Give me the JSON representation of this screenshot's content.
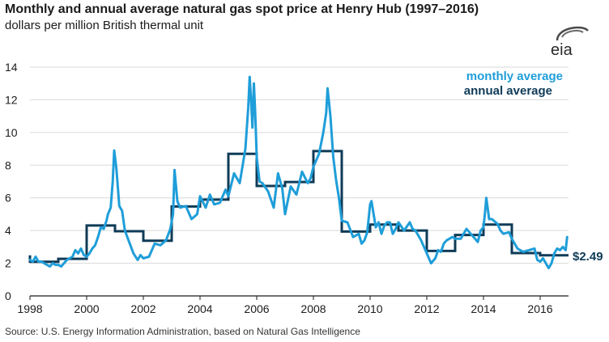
{
  "header": {
    "title": "Monthly and annual average natural gas spot price at Henry Hub (1997–2016)",
    "subtitle": "dollars per million British thermal unit"
  },
  "logo": {
    "text": "eia",
    "icon": "eia-logo"
  },
  "source": "Source:  U.S. Energy Information Administration, based on Natural Gas Intelligence",
  "colors": {
    "monthly": "#1f9ed9",
    "annual": "#0f3b57",
    "axis": "#1b1b1b",
    "grid": "#d9d9d9"
  },
  "chart_data": {
    "type": "line",
    "title": "Monthly and annual average natural gas spot price at Henry Hub (1997–2016)",
    "ylabel": "dollars per million British thermal unit",
    "xlim": [
      1998,
      2017
    ],
    "ylim": [
      0,
      14
    ],
    "xticks": [
      1998,
      2000,
      2002,
      2004,
      2006,
      2008,
      2010,
      2012,
      2014,
      2016
    ],
    "yticks": [
      0,
      2,
      4,
      6,
      8,
      10,
      12,
      14
    ],
    "legend": {
      "placement": "top-right"
    },
    "end_label": "$2.49",
    "series": [
      {
        "name": "monthly average",
        "type": "line",
        "x": [
          1998.0,
          1998.1,
          1998.2,
          1998.3,
          1998.4,
          1998.5,
          1998.6,
          1998.7,
          1998.8,
          1998.9,
          1999.0,
          1999.1,
          1999.2,
          1999.3,
          1999.4,
          1999.5,
          1999.6,
          1999.7,
          1999.8,
          1999.9,
          2000.0,
          2000.1,
          2000.2,
          2000.3,
          2000.4,
          2000.5,
          2000.6,
          2000.7,
          2000.75,
          2000.85,
          2000.92,
          2000.97,
          2001.05,
          2001.15,
          2001.25,
          2001.35,
          2001.5,
          2001.65,
          2001.8,
          2001.9,
          2002.0,
          2002.2,
          2002.4,
          2002.6,
          2002.8,
          2002.95,
          2003.05,
          2003.1,
          2003.2,
          2003.3,
          2003.5,
          2003.7,
          2003.9,
          2004.0,
          2004.2,
          2004.35,
          2004.5,
          2004.7,
          2004.9,
          2005.0,
          2005.2,
          2005.4,
          2005.6,
          2005.7,
          2005.75,
          2005.8,
          2005.85,
          2005.9,
          2005.95,
          2006.0,
          2006.1,
          2006.2,
          2006.4,
          2006.6,
          2006.75,
          2006.9,
          2007.0,
          2007.2,
          2007.4,
          2007.6,
          2007.8,
          2007.9,
          2008.0,
          2008.2,
          2008.35,
          2008.45,
          2008.5,
          2008.6,
          2008.7,
          2008.8,
          2008.9,
          2009.0,
          2009.2,
          2009.4,
          2009.6,
          2009.7,
          2009.8,
          2009.9,
          2010.0,
          2010.05,
          2010.2,
          2010.3,
          2010.4,
          2010.5,
          2010.6,
          2010.7,
          2010.8,
          2010.9,
          2011.0,
          2011.2,
          2011.4,
          2011.5,
          2011.6,
          2011.8,
          2012.0,
          2012.15,
          2012.3,
          2012.4,
          2012.5,
          2012.6,
          2012.7,
          2012.9,
          2013.0,
          2013.2,
          2013.4,
          2013.6,
          2013.8,
          2013.9,
          2014.0,
          2014.05,
          2014.1,
          2014.2,
          2014.3,
          2014.5,
          2014.6,
          2014.7,
          2014.9,
          2015.0,
          2015.2,
          2015.4,
          2015.6,
          2015.8,
          2015.9,
          2016.0,
          2016.1,
          2016.2,
          2016.3,
          2016.4,
          2016.5,
          2016.6,
          2016.7,
          2016.8,
          2016.9,
          2016.95
        ],
        "values": [
          2.2,
          2.1,
          2.4,
          2.1,
          2.1,
          2.0,
          1.9,
          1.8,
          2.0,
          1.9,
          1.9,
          1.8,
          2.0,
          2.2,
          2.3,
          2.4,
          2.8,
          2.6,
          2.9,
          2.5,
          2.4,
          2.6,
          2.9,
          3.1,
          3.6,
          4.2,
          4.1,
          4.6,
          5.0,
          5.4,
          7.0,
          8.9,
          7.8,
          5.5,
          5.2,
          4.0,
          3.3,
          2.6,
          2.2,
          2.5,
          2.3,
          2.4,
          3.2,
          3.1,
          3.4,
          4.1,
          5.0,
          7.7,
          5.8,
          5.4,
          5.5,
          4.7,
          5.0,
          6.1,
          5.4,
          6.2,
          5.6,
          5.7,
          6.5,
          6.1,
          7.5,
          6.9,
          9.0,
          11.5,
          13.4,
          12.0,
          10.3,
          13.0,
          11.0,
          8.5,
          7.0,
          6.9,
          6.4,
          5.4,
          7.5,
          6.6,
          5.0,
          6.7,
          6.2,
          7.6,
          6.9,
          7.2,
          7.9,
          8.7,
          10.0,
          11.2,
          12.7,
          11.0,
          8.5,
          7.1,
          6.0,
          4.6,
          4.5,
          3.6,
          3.8,
          3.2,
          3.4,
          3.9,
          5.6,
          5.8,
          4.2,
          4.5,
          3.8,
          4.3,
          4.5,
          4.5,
          3.8,
          4.1,
          4.5,
          4.0,
          4.5,
          4.1,
          4.0,
          3.4,
          2.6,
          2.0,
          2.3,
          2.8,
          2.7,
          3.2,
          3.4,
          3.6,
          3.5,
          3.5,
          4.1,
          3.7,
          3.3,
          4.0,
          4.2,
          5.0,
          6.0,
          4.7,
          4.7,
          4.4,
          4.0,
          3.8,
          3.9,
          3.5,
          2.9,
          2.7,
          2.8,
          2.9,
          2.2,
          2.1,
          2.3,
          2.0,
          1.7,
          2.0,
          2.6,
          2.9,
          2.8,
          3.0,
          2.8,
          3.6
        ]
      },
      {
        "name": "annual average",
        "type": "step",
        "years": [
          1997,
          1998,
          1999,
          2000,
          2001,
          2002,
          2003,
          2004,
          2005,
          2006,
          2007,
          2008,
          2009,
          2010,
          2011,
          2012,
          2013,
          2014,
          2015,
          2016
        ],
        "values": [
          2.49,
          2.09,
          2.27,
          4.31,
          3.96,
          3.38,
          5.47,
          5.89,
          8.69,
          6.73,
          6.97,
          8.86,
          3.94,
          4.37,
          4.0,
          2.75,
          3.73,
          4.37,
          2.62,
          2.49
        ]
      }
    ]
  }
}
